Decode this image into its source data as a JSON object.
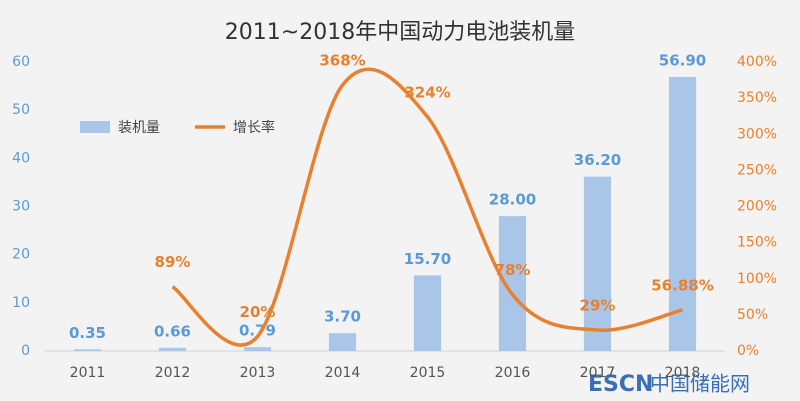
{
  "chart_data": {
    "type": "bar_line",
    "title": "2011~2018年中国动力电池装机量",
    "categories": [
      "2011",
      "2012",
      "2013",
      "2014",
      "2015",
      "2016",
      "2017",
      "2018"
    ],
    "series": [
      {
        "name": "装机量",
        "type": "bar",
        "color": "#a9c6e8",
        "label_color": "#5b9bd5",
        "values": [
          0.35,
          0.66,
          0.79,
          3.7,
          15.7,
          28.0,
          36.2,
          56.9
        ],
        "value_labels": [
          "0.35",
          "0.66",
          "0.79",
          "3.70",
          "15.70",
          "28.00",
          "36.20",
          "56.90"
        ]
      },
      {
        "name": "增长率",
        "type": "line",
        "axis": "y2",
        "color": "#e8812f",
        "label_color": "#e8812f",
        "values": [
          null,
          89,
          20,
          368,
          324,
          78,
          29,
          56.88
        ],
        "value_labels": [
          null,
          "89%",
          "20%",
          "368%",
          "324%",
          "78%",
          "29%",
          "56.88%"
        ]
      }
    ],
    "ylim": [
      0,
      60
    ],
    "yticks": [
      0,
      10,
      20,
      30,
      40,
      50,
      60
    ],
    "y2lim": [
      0,
      400
    ],
    "y2ticks": [
      {
        "value": 0,
        "label": "0%"
      },
      {
        "value": 50,
        "label": "50%"
      },
      {
        "value": 100,
        "label": "100%"
      },
      {
        "value": 150,
        "label": "150%"
      },
      {
        "value": 200,
        "label": "200%"
      },
      {
        "value": 250,
        "label": "250%"
      },
      {
        "value": 300,
        "label": "300%"
      },
      {
        "value": 350,
        "label": "350%"
      },
      {
        "value": 400,
        "label": "400%"
      }
    ],
    "legend": "upper left",
    "watermark": [
      "ESCN",
      "中国储能网"
    ]
  }
}
